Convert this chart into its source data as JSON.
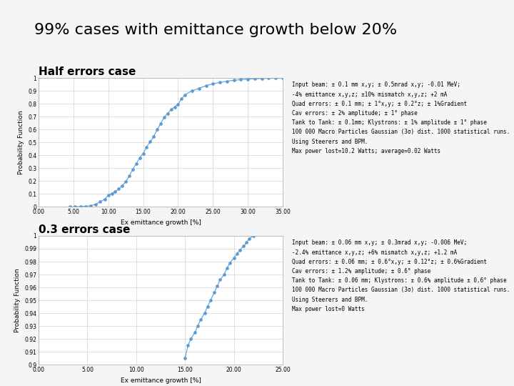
{
  "title": "99% cases with emittance growth below 20%",
  "title_fontsize": 16,
  "bg_color": "#f5f5f5",
  "header_bg": "#ffffff",
  "content_bg": "#ffffff",
  "orange_line_color": "#e8826a",
  "separator_color": "#cccccc",
  "plot1": {
    "title": "Half errors case",
    "title_fontsize": 11,
    "xlabel": "Ex emittance growth [%]",
    "ylabel": "Probability Function",
    "xlim": [
      0.0,
      35.0
    ],
    "ylim": [
      0.0,
      1.0
    ],
    "xticks": [
      0.0,
      5.0,
      10.0,
      15.0,
      20.0,
      25.0,
      30.0,
      35.0
    ],
    "yticks": [
      0.0,
      0.1,
      0.2,
      0.3,
      0.4,
      0.5,
      0.6,
      0.7,
      0.8,
      0.9,
      1.0
    ],
    "ytick_labels": [
      "0",
      "0.1",
      "0.2",
      "0.3",
      "0.4",
      "0.5",
      "0.6",
      "0.7",
      "0.8",
      "0.9",
      "1"
    ],
    "line_color": "#5b9bd5",
    "x": [
      4.5,
      5.2,
      6.0,
      6.8,
      7.5,
      8.2,
      8.8,
      9.5,
      10.0,
      10.5,
      11.0,
      11.5,
      12.0,
      12.5,
      13.0,
      13.5,
      14.0,
      14.5,
      15.0,
      15.5,
      16.0,
      16.5,
      17.0,
      17.5,
      18.0,
      18.5,
      19.0,
      19.5,
      20.0,
      20.5,
      21.0,
      22.0,
      23.0,
      24.0,
      25.0,
      26.0,
      27.0,
      28.0,
      29.0,
      30.0,
      31.0,
      32.0,
      33.0,
      34.0,
      35.0
    ],
    "y": [
      0.001,
      0.002,
      0.003,
      0.005,
      0.01,
      0.02,
      0.04,
      0.06,
      0.09,
      0.105,
      0.12,
      0.14,
      0.165,
      0.195,
      0.24,
      0.29,
      0.335,
      0.38,
      0.415,
      0.465,
      0.505,
      0.545,
      0.6,
      0.645,
      0.695,
      0.725,
      0.755,
      0.775,
      0.795,
      0.84,
      0.87,
      0.9,
      0.92,
      0.94,
      0.955,
      0.965,
      0.975,
      0.982,
      0.987,
      0.991,
      0.994,
      0.996,
      0.998,
      0.999,
      1.0
    ],
    "text_info": "Input beam: ± 0.1 mm x,y; ± 0.5mrad x,y; -0.01 MeV;\n-4% emittance x,y,z; ±10% mismatch x,y,z; +2 mA\nQuad errors: ± 0.1 mm; ± 1°x,y; ± 0.2°z; ± 1%Gradient\nCav errors: ± 2% amplitude; ± 1° phase\nTank to Tank: ± 0.1mm; Klystrons: ± 1% amplitude ± 1° phase\n100 000 Macro Particles Gaussian (3σ) dist. 1000 statistical runs.\nUsing Steerers and BPM.\nMax power lost=10.2 Watts; average=0.02 Watts"
  },
  "plot2": {
    "title": "0.3 errors case",
    "title_fontsize": 11,
    "xlabel": "Ex emittance growth [%]",
    "ylabel": "Probability Function",
    "xlim": [
      0.0,
      25.0
    ],
    "ylim": [
      0.9,
      1.0
    ],
    "xticks": [
      0.0,
      5.0,
      10.0,
      15.0,
      20.0,
      25.0
    ],
    "yticks": [
      0.9,
      0.91,
      0.92,
      0.93,
      0.94,
      0.95,
      0.96,
      0.97,
      0.98,
      0.99,
      1.0
    ],
    "ytick_labels": [
      "0.9",
      "0.91",
      "0.92",
      "0.93",
      "0.94",
      "0.95",
      "0.96",
      "0.97",
      "0.98",
      "0.99",
      "1"
    ],
    "line_color": "#5b9bd5",
    "x": [
      15.0,
      15.3,
      15.6,
      16.0,
      16.3,
      16.6,
      17.0,
      17.3,
      17.6,
      18.0,
      18.3,
      18.6,
      19.0,
      19.3,
      19.6,
      20.0,
      20.3,
      20.6,
      21.0,
      21.3,
      21.6,
      22.0
    ],
    "y": [
      0.905,
      0.915,
      0.92,
      0.925,
      0.93,
      0.935,
      0.94,
      0.945,
      0.95,
      0.956,
      0.961,
      0.966,
      0.97,
      0.975,
      0.979,
      0.983,
      0.986,
      0.989,
      0.992,
      0.995,
      0.998,
      1.0
    ],
    "text_info": "Input beam: ± 0.06 mm x,y; ± 0.3mrad x,y; -0.006 MeV;\n-2.4% emittance x,y,z; +6% mismatch x,y,z; +1.2 mA\nQuad errors: ± 0.06 mm; ± 0.6°x,y; ± 0.12°z; ± 0.6%Gradient\nCav errors: ± 1.2% amplitude; ± 0.6° phase\nTank to Tank: ± 0.06 mm; Klystrons: ± 0.6% amplitude ± 0.6° phase\n100 000 Macro Particles Gaussian (3σ) dist. 1000 statistical runs.\nUsing Steerers and BPM.\nMax power lost=0 Watts"
  }
}
